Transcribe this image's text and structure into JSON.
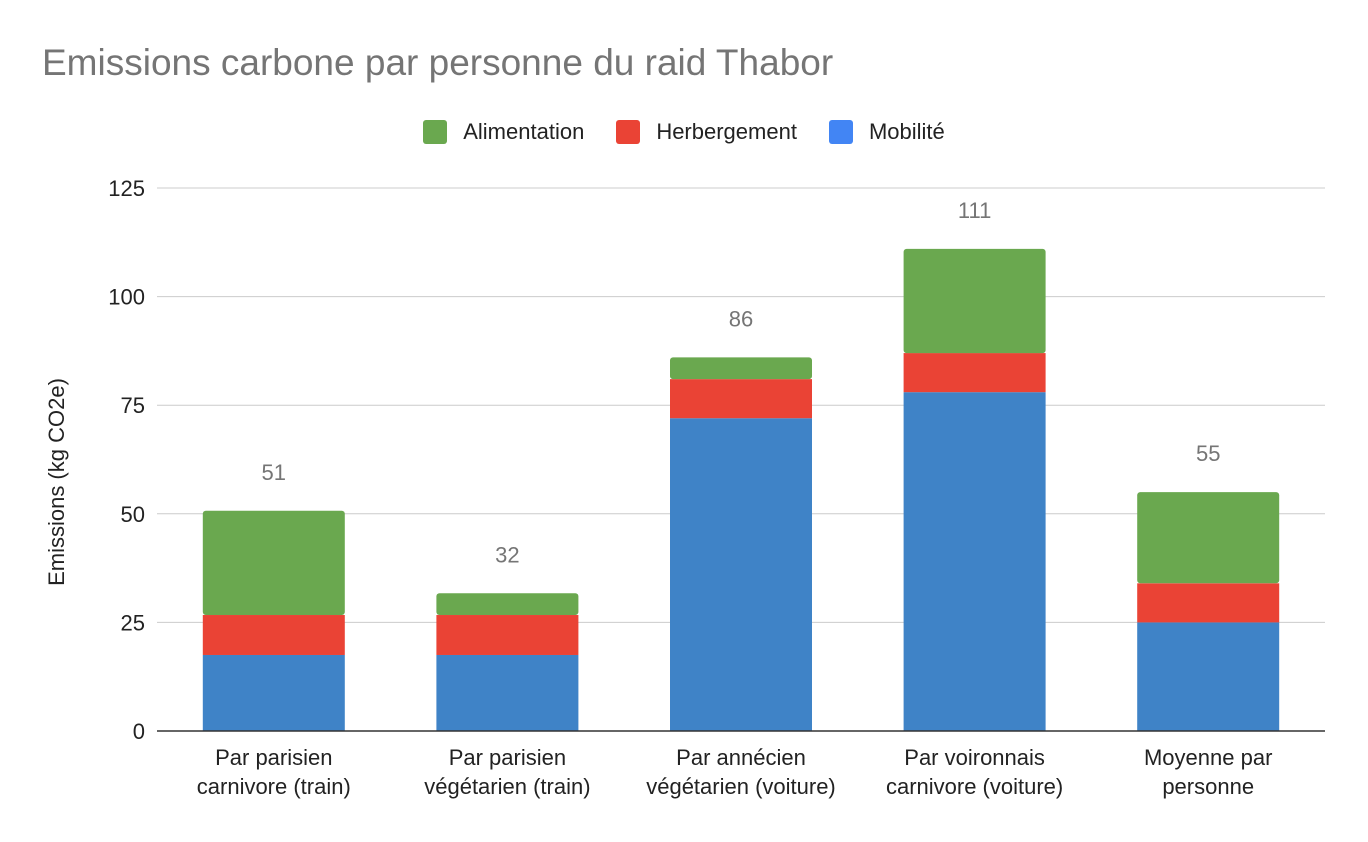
{
  "chart_data": {
    "type": "bar",
    "stacked": true,
    "title": "Emissions carbone par personne du raid Thabor",
    "ylabel": "Emissions (kg CO2e)",
    "xlabel": "",
    "ylim": [
      0,
      125
    ],
    "yticks": [
      "0",
      "25",
      "50",
      "75",
      "100",
      "125"
    ],
    "grid": true,
    "legend_position": "top",
    "categories": [
      [
        "Par parisien",
        "carnivore (train)"
      ],
      [
        "Par parisien",
        "végétarien (train)"
      ],
      [
        "Par annécien",
        "végétarien (voiture)"
      ],
      [
        "Par voironnais",
        "carnivore (voiture)"
      ],
      [
        "Moyenne par",
        "personne"
      ]
    ],
    "series": [
      {
        "name": "Mobilité",
        "color": "#3f83c7",
        "values": [
          17.5,
          17.5,
          72,
          78,
          25
        ]
      },
      {
        "name": "Herbergement",
        "color": "#ea4335",
        "values": [
          9.2,
          9.2,
          9,
          9,
          9
        ]
      },
      {
        "name": "Alimentation",
        "color": "#6aa84f",
        "values": [
          24,
          5,
          5,
          24,
          21
        ]
      }
    ],
    "totals": [
      "51",
      "32",
      "86",
      "111",
      "55"
    ]
  },
  "legend": [
    {
      "name": "Alimentation",
      "color": "#6aa84f"
    },
    {
      "name": "Herbergement",
      "color": "#ea4335"
    },
    {
      "name": "Mobilité",
      "color": "#4285f4"
    }
  ]
}
